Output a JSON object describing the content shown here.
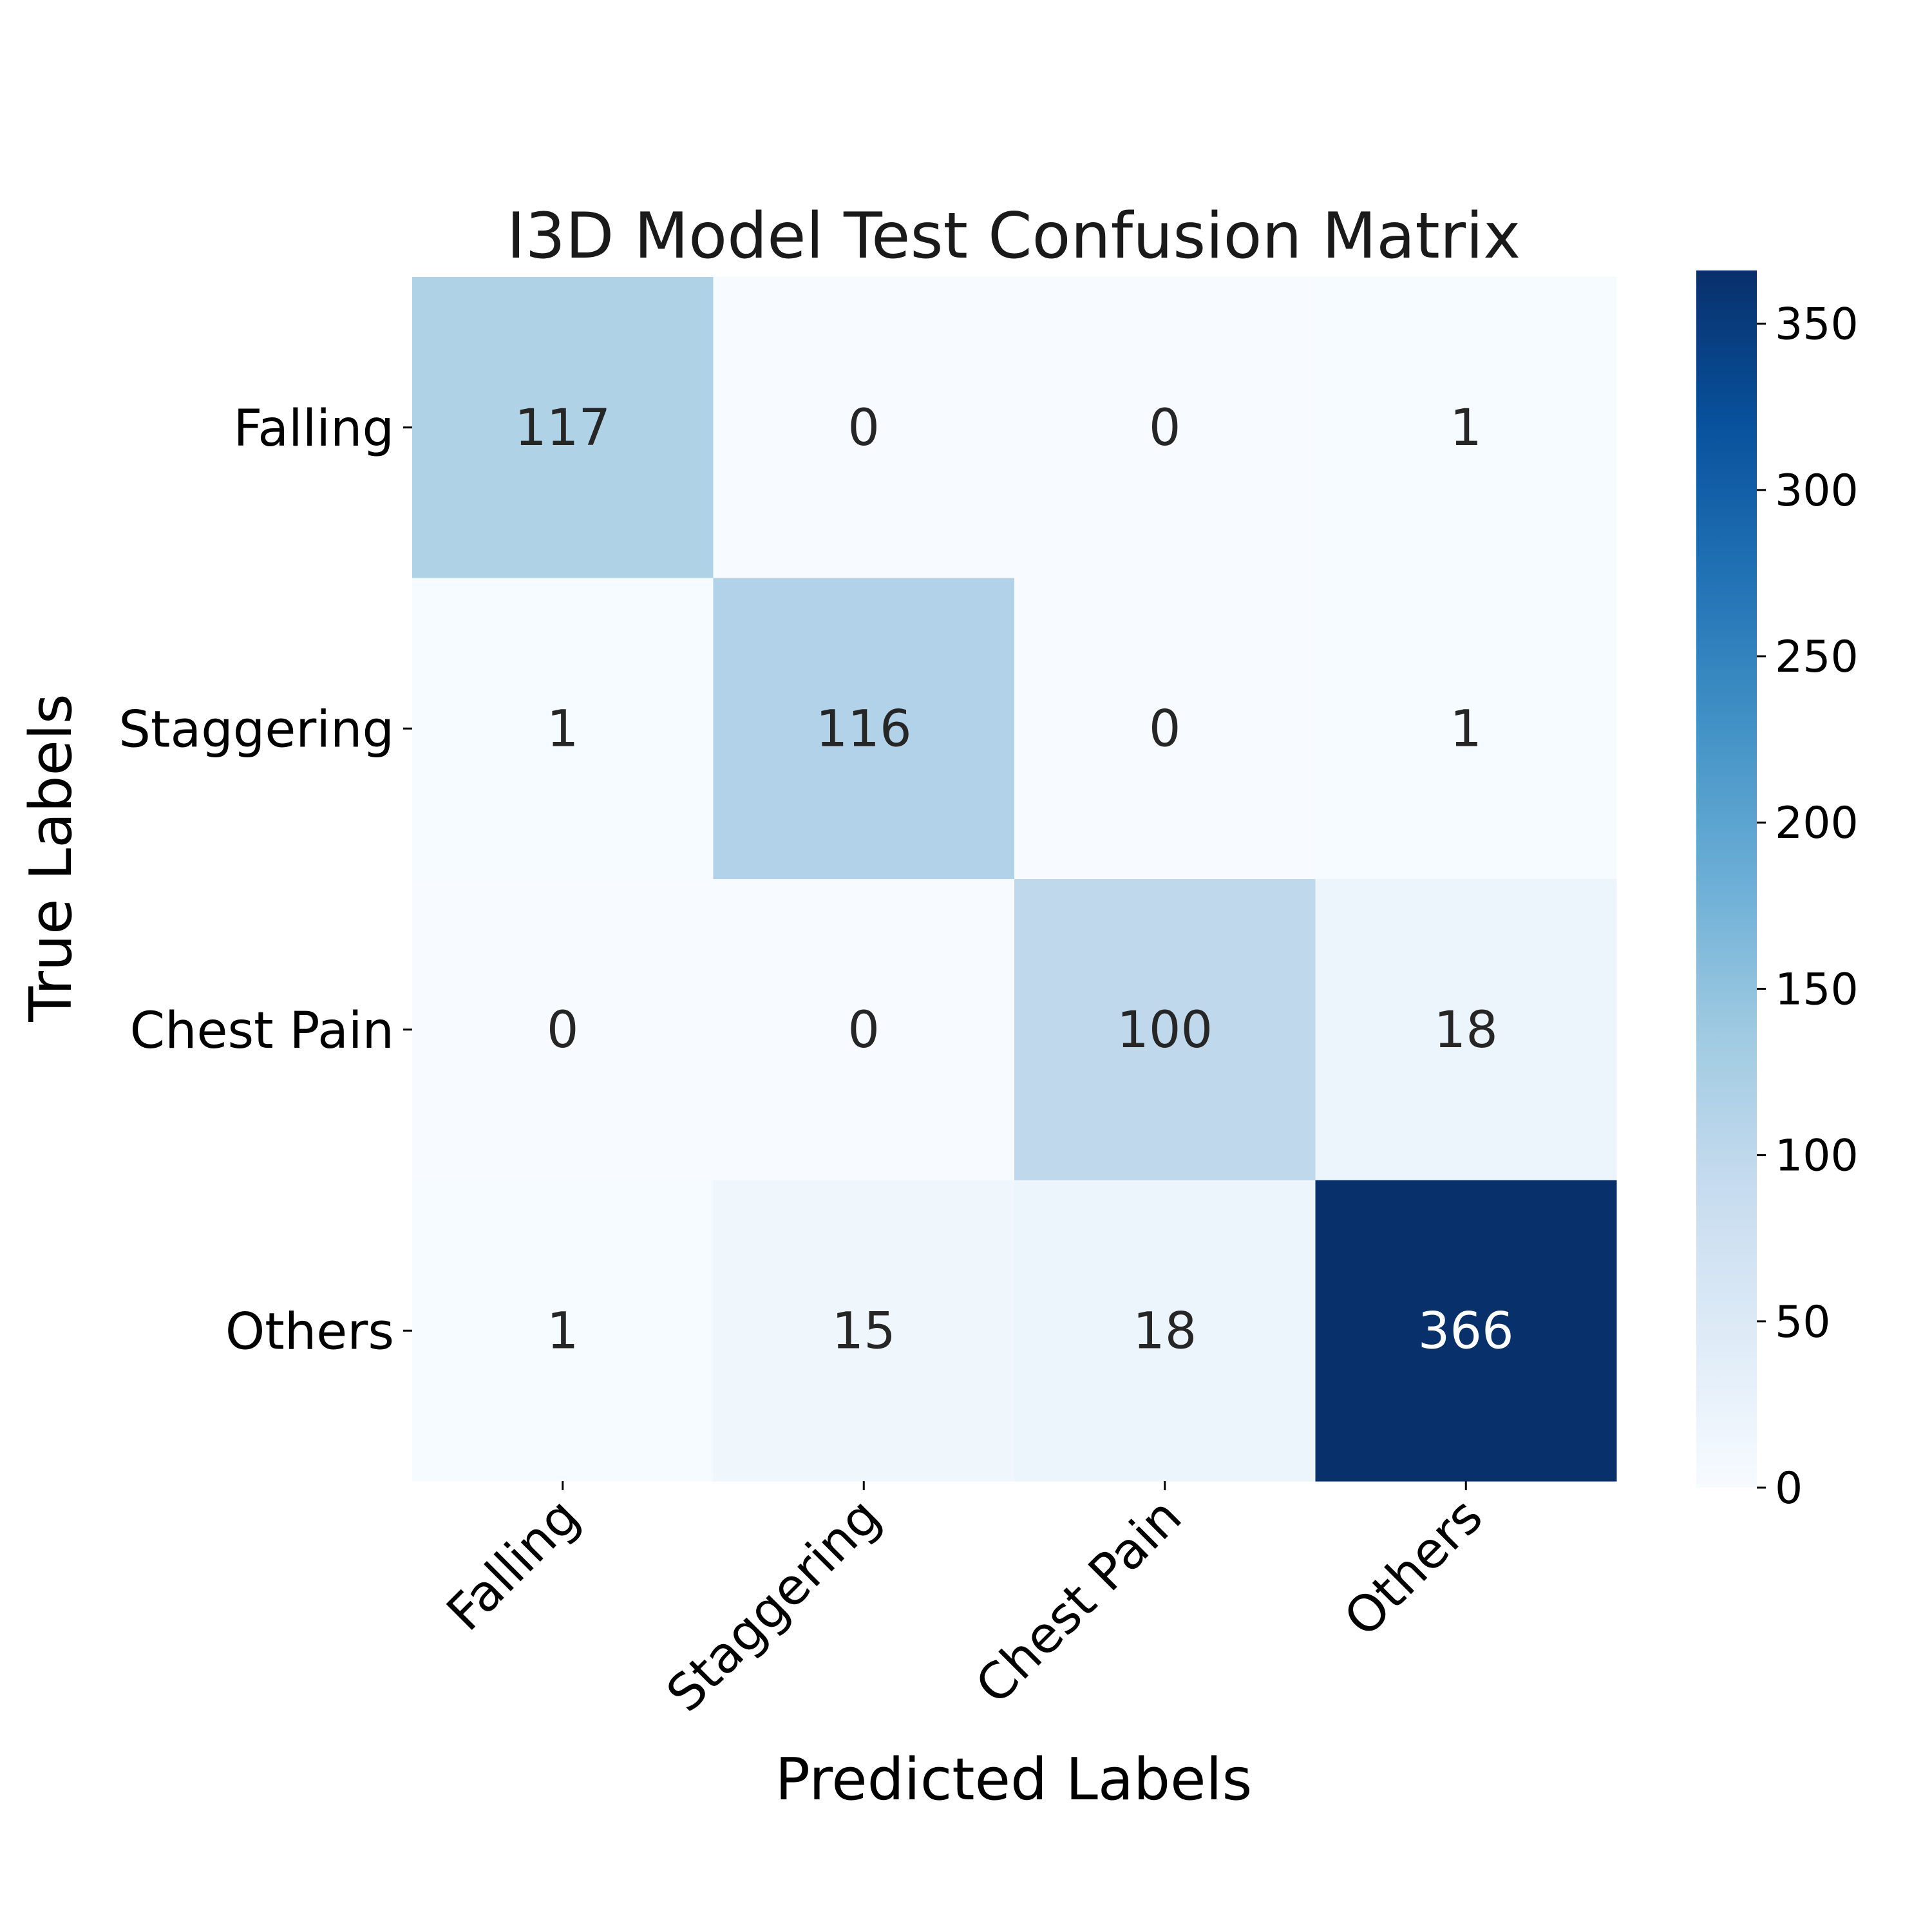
{
  "chart_data": {
    "type": "heatmap",
    "title": "I3D Model Test Confusion Matrix",
    "xlabel": "Predicted Labels",
    "ylabel": "True Labels",
    "x_categories": [
      "Falling",
      "Staggering",
      "Chest Pain",
      "Others"
    ],
    "y_categories": [
      "Falling",
      "Staggering",
      "Chest Pain",
      "Others"
    ],
    "matrix": [
      [
        117,
        0,
        0,
        1
      ],
      [
        1,
        116,
        0,
        1
      ],
      [
        0,
        0,
        100,
        18
      ],
      [
        1,
        15,
        18,
        366
      ]
    ],
    "colormap": "Blues",
    "colorbar": {
      "range": [
        0,
        366
      ],
      "ticks": [
        0,
        50,
        100,
        150,
        200,
        250,
        300,
        350
      ]
    },
    "grid": false
  }
}
